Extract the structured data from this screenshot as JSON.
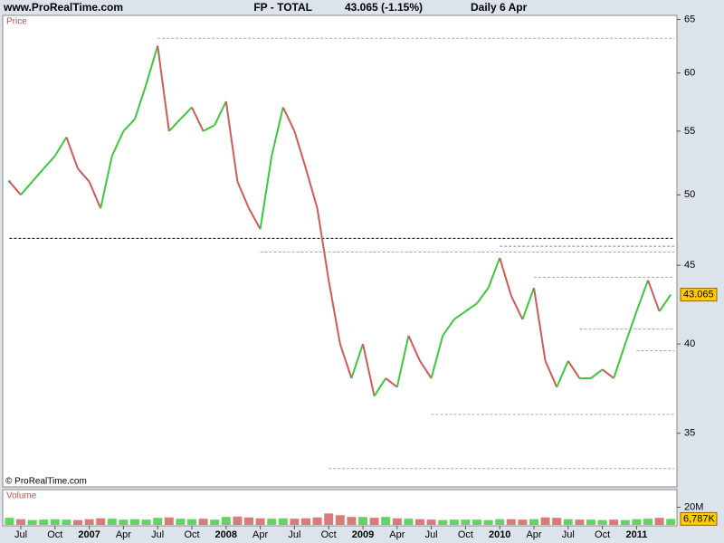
{
  "chart_data": {
    "type": "line",
    "site": "www.ProRealTime.com",
    "symbol": "FP - TOTAL",
    "quote": "43.065 (-1.15%)",
    "period": "Daily  6 Apr",
    "panel_label": "Price",
    "copyright": "© ProRealTime.com",
    "categories": [
      null,
      "Jul",
      null,
      null,
      "Oct",
      null,
      null,
      "2007",
      null,
      null,
      "Apr",
      null,
      null,
      "Jul",
      null,
      null,
      "Oct",
      null,
      null,
      "2008",
      null,
      null,
      "Apr",
      null,
      null,
      "Jul",
      null,
      null,
      "Oct",
      null,
      null,
      "2009",
      null,
      null,
      "Apr",
      null,
      null,
      "Jul",
      null,
      null,
      "Oct",
      null,
      null,
      "2010",
      null,
      null,
      "Apr",
      null,
      null,
      "Jul",
      null,
      null,
      "Oct",
      null,
      null,
      "2011",
      null,
      null,
      null
    ],
    "series": [
      {
        "name": "TOTAL",
        "values": [
          51,
          50,
          51,
          52,
          53,
          54.5,
          52,
          51,
          49,
          53,
          55,
          56,
          59,
          62.5,
          55,
          56,
          57,
          55,
          55.5,
          57.5,
          51,
          49,
          47.5,
          53,
          57,
          55,
          52,
          49,
          44,
          40,
          38,
          40,
          37,
          38,
          37.5,
          40.5,
          39,
          38,
          40.5,
          41.5,
          42,
          42.5,
          43.5,
          45.5,
          43,
          41.5,
          43.5,
          39,
          37.5,
          39,
          38,
          38,
          38.5,
          38,
          40,
          42,
          44,
          42,
          43.065
        ]
      }
    ],
    "up_color": "#3cc83c",
    "down_color": "#d05a5a",
    "ylim": [
      32.3,
      65.4
    ],
    "log": true,
    "yticks": [
      35,
      40,
      45,
      50,
      55,
      60,
      65
    ],
    "levels": [
      {
        "value": 63.2,
        "from": 13,
        "color": "#aaaaaa"
      },
      {
        "value": 46.85,
        "from": 0,
        "color": "#000000"
      },
      {
        "value": 45.9,
        "from": 22,
        "color": "#aaaaaa"
      },
      {
        "value": 46.3,
        "from": 43,
        "color": "#6f8fc0"
      },
      {
        "value": 44.2,
        "from": 46,
        "color": "#aaaaaa"
      },
      {
        "value": 40.9,
        "from": 50,
        "color": "#aaaaaa"
      },
      {
        "value": 39.6,
        "from": 55,
        "color": "#aaaaaa"
      },
      {
        "value": 36,
        "from": 37,
        "color": "#aaaaaa"
      },
      {
        "value": 33.2,
        "from": 28,
        "color": "#aaaaaa"
      }
    ],
    "volume": {
      "label": "Volume",
      "values": [
        8000000,
        6500000,
        5500000,
        6000000,
        6500000,
        6000000,
        5500000,
        6500000,
        7500000,
        7000000,
        6000000,
        6500000,
        6000000,
        8000000,
        8500000,
        7000000,
        6500000,
        7000000,
        6000000,
        9000000,
        9500000,
        8500000,
        7500000,
        7000000,
        7500000,
        7000000,
        7500000,
        8500000,
        13000000,
        11000000,
        9000000,
        9000000,
        8000000,
        9000000,
        7500000,
        7000000,
        6500000,
        6000000,
        5500000,
        6000000,
        6000000,
        6000000,
        5500000,
        6500000,
        6500000,
        6000000,
        6500000,
        8500000,
        8000000,
        6500000,
        6000000,
        6000000,
        5500000,
        6000000,
        5500000,
        6500000,
        7000000,
        8000000,
        6787000
      ],
      "value_labels": {
        "58": "6,787K"
      },
      "ylim": [
        0,
        40000000
      ],
      "yticks": [
        {
          "value": 20000000,
          "label": "20M"
        }
      ]
    }
  }
}
